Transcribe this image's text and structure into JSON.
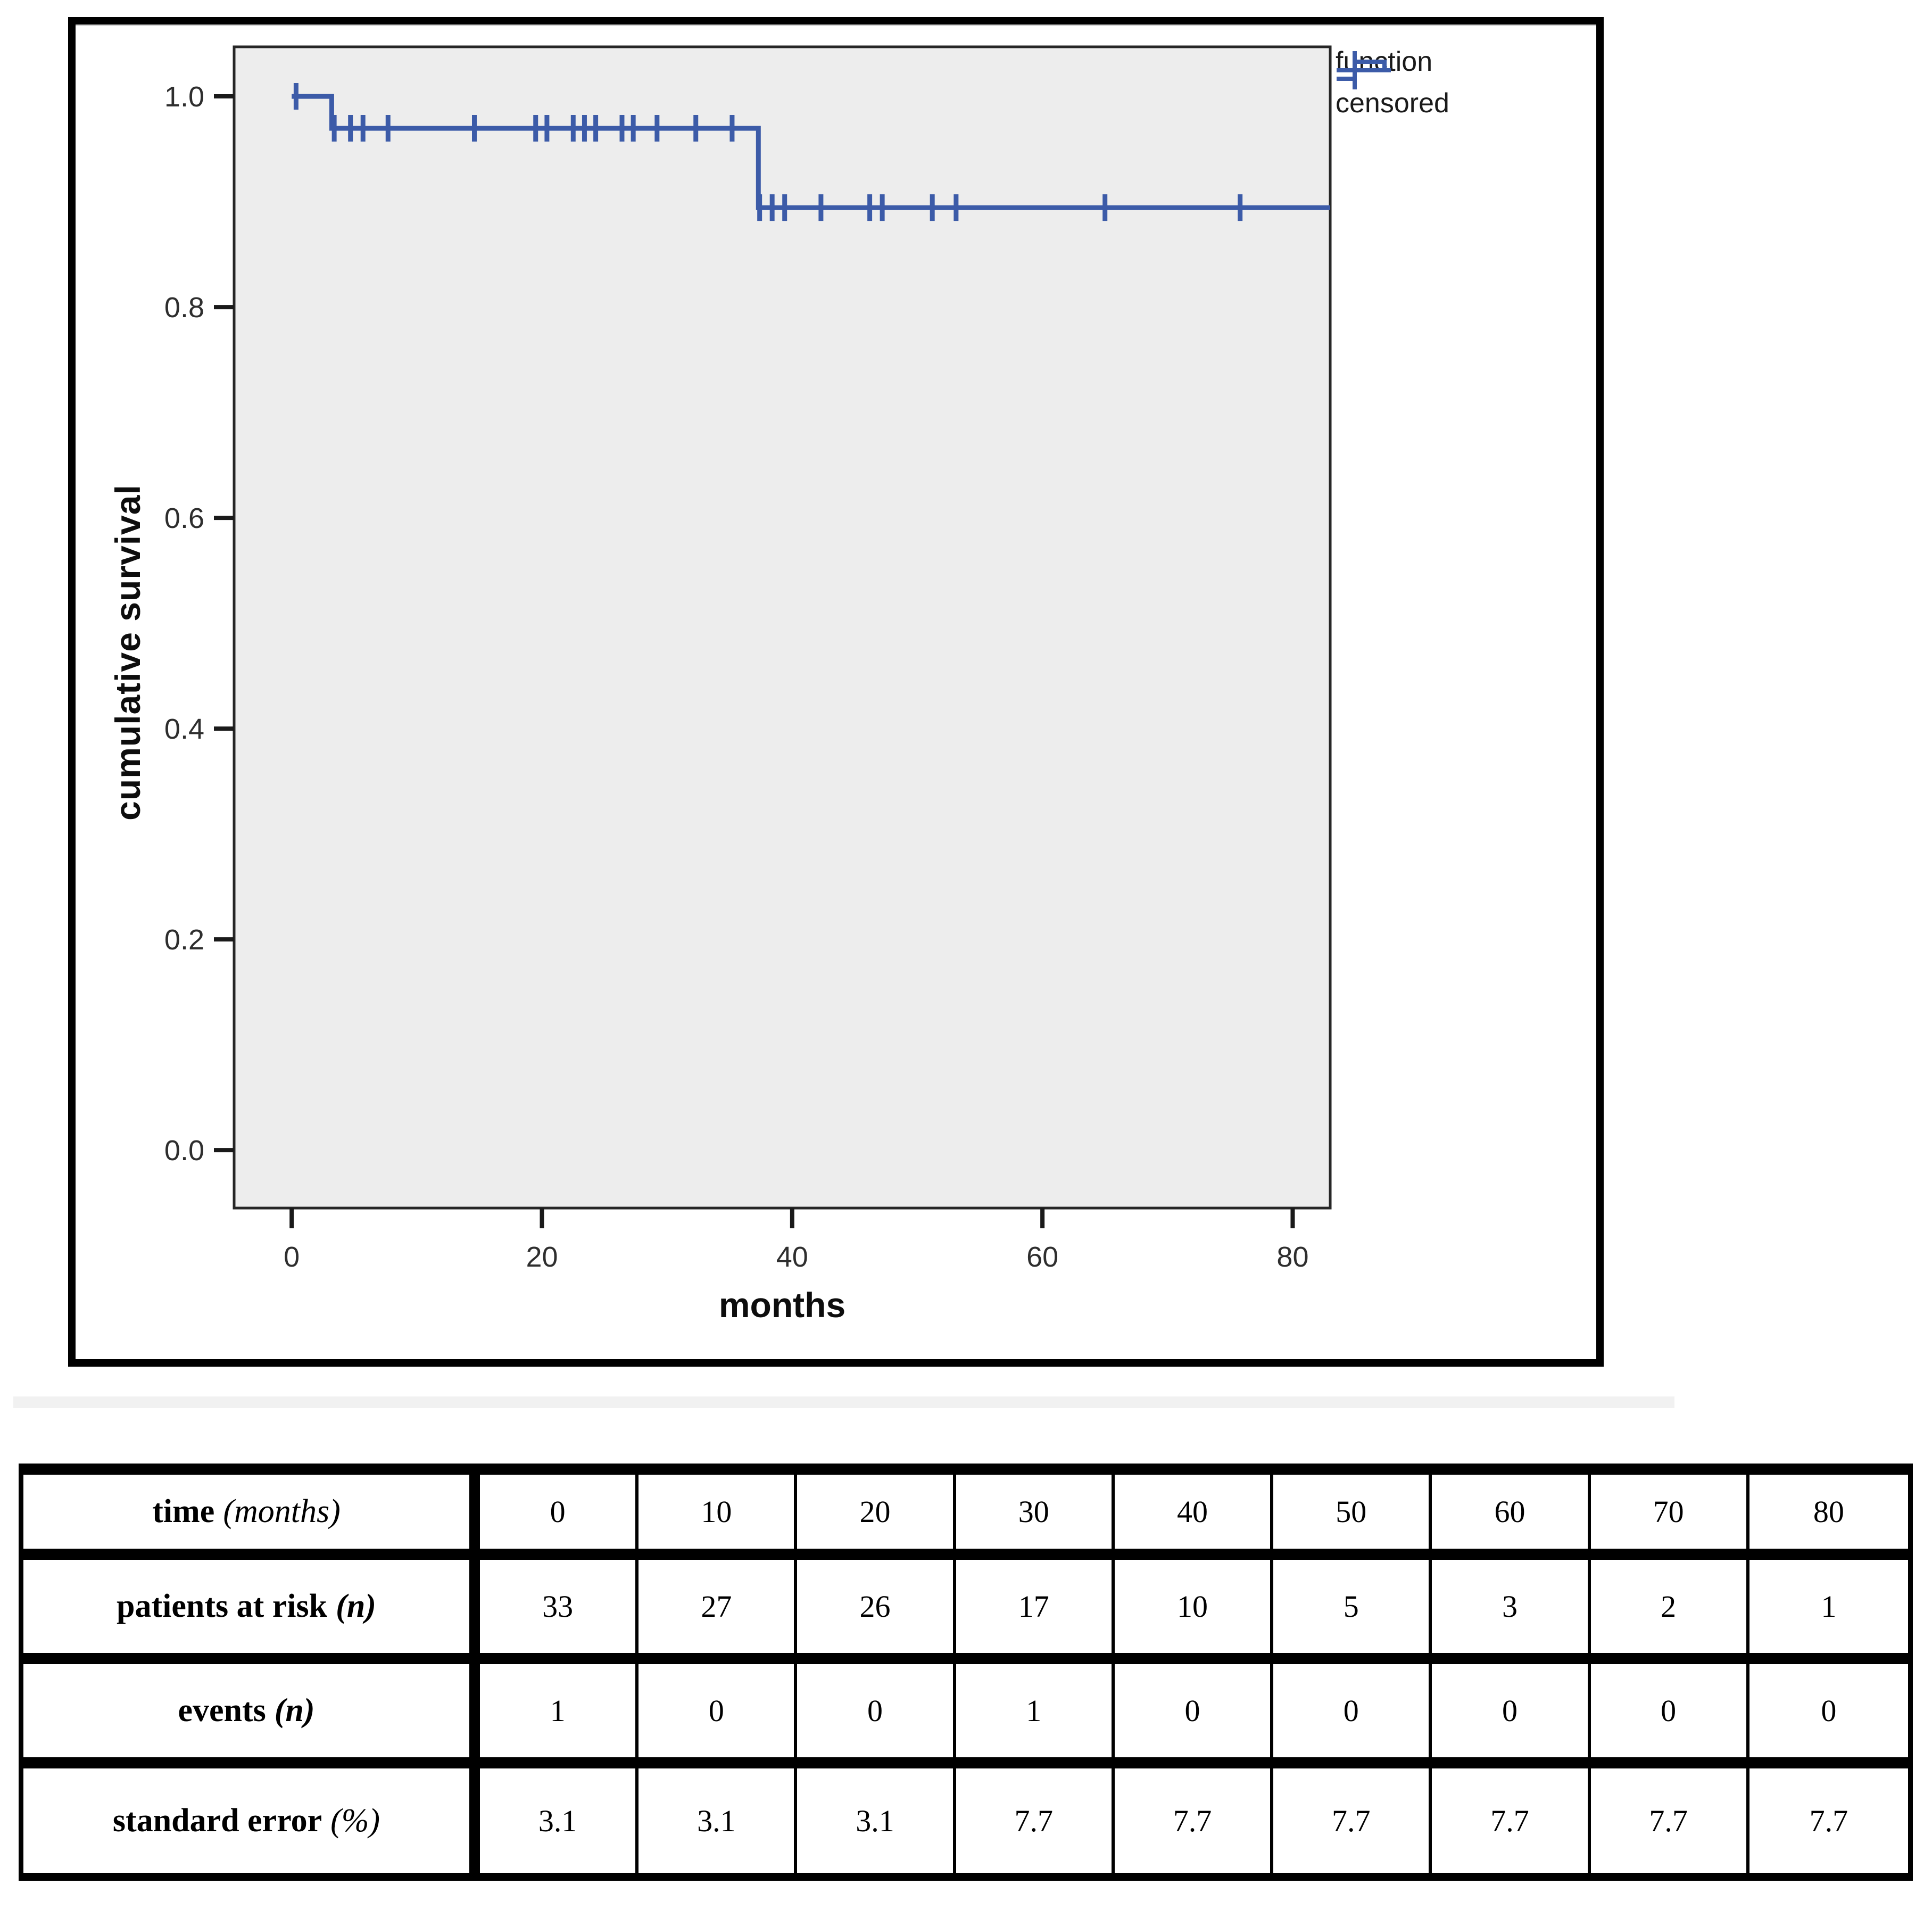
{
  "figure": {
    "legend": {
      "items": [
        {
          "symbol": "step-line",
          "label": "function"
        },
        {
          "symbol": "plus",
          "label": "censored"
        }
      ]
    }
  },
  "chart_data": {
    "type": "line",
    "subtype": "kaplan-meier-step",
    "title": "",
    "xlabel": "months",
    "ylabel": "cumulative survival",
    "xlim": [
      -4.6,
      83.0
    ],
    "ylim": [
      -0.055,
      1.047
    ],
    "x_ticks": [
      "0",
      "20",
      "40",
      "60",
      "80"
    ],
    "y_ticks": [
      "1.0",
      "0.8",
      "0.6",
      "0.4",
      "0.2",
      "0.0"
    ],
    "grid": false,
    "legend_position": "top-right-outside",
    "line_color": "#3c5ba8",
    "plot_bg": "#ededed",
    "frame_color": "#262626",
    "tick_color": "#1a1a1a",
    "tick_label_color": "#2e2e2e",
    "series": [
      {
        "name": "function",
        "steps": [
          [
            0,
            1.0
          ],
          [
            3.2,
            1.0
          ],
          [
            3.2,
            0.9697
          ],
          [
            37.3,
            0.9697
          ],
          [
            37.3,
            0.8944
          ],
          [
            83.0,
            0.8944
          ]
        ]
      }
    ],
    "censored_points": [
      [
        0.35,
        1.0
      ],
      [
        3.4,
        0.9697
      ],
      [
        4.7,
        0.9697
      ],
      [
        5.7,
        0.9697
      ],
      [
        7.7,
        0.9697
      ],
      [
        14.6,
        0.9697
      ],
      [
        19.5,
        0.9697
      ],
      [
        20.4,
        0.9697
      ],
      [
        22.5,
        0.9697
      ],
      [
        23.4,
        0.9697
      ],
      [
        24.3,
        0.9697
      ],
      [
        26.4,
        0.9697
      ],
      [
        27.3,
        0.9697
      ],
      [
        29.2,
        0.9697
      ],
      [
        32.3,
        0.9697
      ],
      [
        35.2,
        0.9697
      ],
      [
        37.4,
        0.8944
      ],
      [
        38.4,
        0.8944
      ],
      [
        39.4,
        0.8944
      ],
      [
        42.3,
        0.8944
      ],
      [
        46.2,
        0.8944
      ],
      [
        47.2,
        0.8944
      ],
      [
        51.2,
        0.8944
      ],
      [
        53.1,
        0.8944
      ],
      [
        65.0,
        0.8944
      ],
      [
        75.8,
        0.8944
      ]
    ]
  },
  "table": {
    "rows": [
      {
        "label": "time",
        "paren": "(months)",
        "paren_bold": false,
        "values": [
          "0",
          "10",
          "20",
          "30",
          "40",
          "50",
          "60",
          "70",
          "80"
        ]
      },
      {
        "label": "patients at risk",
        "paren": "(n)",
        "paren_bold": true,
        "values": [
          "33",
          "27",
          "26",
          "17",
          "10",
          "5",
          "3",
          "2",
          "1"
        ]
      },
      {
        "label": "events",
        "paren": "(n)",
        "paren_bold": true,
        "values": [
          "1",
          "0",
          "0",
          "1",
          "0",
          "0",
          "0",
          "0",
          "0"
        ]
      },
      {
        "label": "standard error",
        "paren": "(%)",
        "paren_bold": false,
        "values": [
          "3.1",
          "3.1",
          "3.1",
          "7.7",
          "7.7",
          "7.7",
          "7.7",
          "7.7",
          "7.7"
        ]
      }
    ]
  }
}
